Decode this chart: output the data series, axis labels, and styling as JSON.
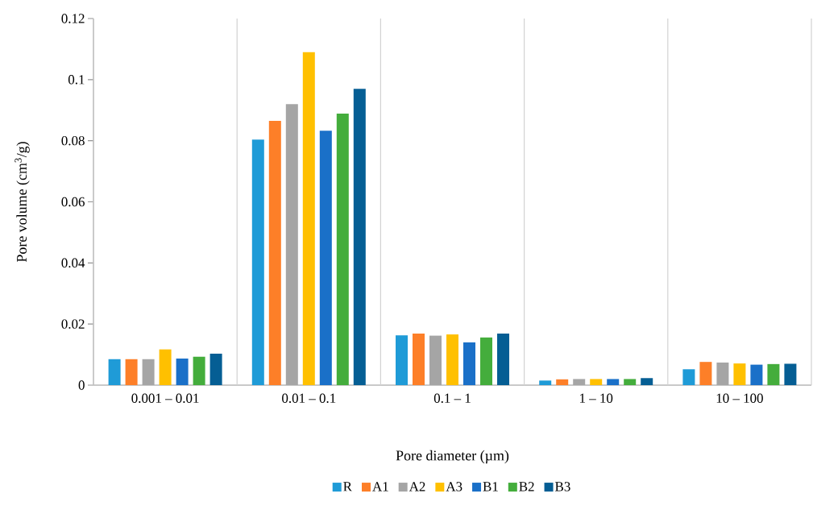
{
  "chart_data": {
    "type": "bar",
    "xlabel": "Pore diameter (µm)",
    "ylabel": "Pore volume (cm$^{3}$/g)",
    "categories": [
      "0.001 – 0.01",
      "0.01 – 0.1",
      "0.1 – 1",
      "1 – 10",
      "10 – 100"
    ],
    "series": [
      {
        "name": "R",
        "color": "#1f9bd7",
        "values": [
          0.0085,
          0.0804,
          0.0163,
          0.0015,
          0.0052
        ]
      },
      {
        "name": "A1",
        "color": "#fd7f28",
        "values": [
          0.0085,
          0.0865,
          0.0169,
          0.0019,
          0.0076
        ]
      },
      {
        "name": "A2",
        "color": "#a5a5a5",
        "values": [
          0.0085,
          0.092,
          0.0162,
          0.002,
          0.0074
        ]
      },
      {
        "name": "A3",
        "color": "#ffc000",
        "values": [
          0.0117,
          0.109,
          0.0166,
          0.002,
          0.0071
        ]
      },
      {
        "name": "B1",
        "color": "#1a70c8",
        "values": [
          0.0087,
          0.0833,
          0.014,
          0.002,
          0.0067
        ]
      },
      {
        "name": "B2",
        "color": "#44ad3c",
        "values": [
          0.0093,
          0.0889,
          0.0156,
          0.002,
          0.0069
        ]
      },
      {
        "name": "B3",
        "color": "#055e94",
        "values": [
          0.0103,
          0.097,
          0.0169,
          0.0023,
          0.007
        ]
      }
    ],
    "ylim": [
      0,
      0.12
    ],
    "yticks": [
      0,
      0.02,
      0.04,
      0.06,
      0.08,
      0.1,
      0.12
    ],
    "grid": "x",
    "legend": "bottom"
  }
}
